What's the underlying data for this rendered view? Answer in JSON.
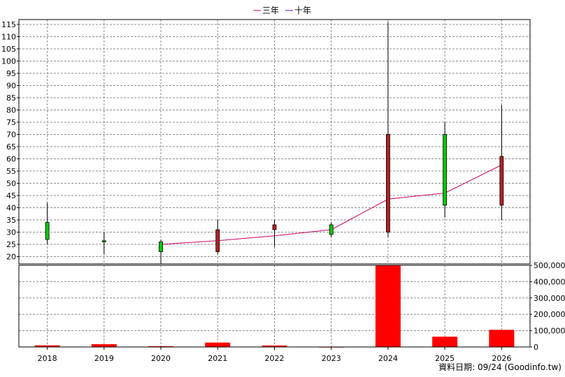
{
  "legend": {
    "items": [
      {
        "label": "三年",
        "color": "#cc0066"
      },
      {
        "label": "十年",
        "color": "#6600cc"
      }
    ]
  },
  "footer": {
    "text": "資料日期: 09/24  (Goodinfo.tw)"
  },
  "colors": {
    "up": "#00cc00",
    "down": "#b22222",
    "volume": "#ff0000",
    "three_year_line": "#cc0066",
    "grid": "#8c8c8c"
  },
  "chart_data": [
    {
      "type": "candlestick",
      "categories": [
        "2018",
        "2019",
        "2020",
        "2021",
        "2022",
        "2023",
        "2024",
        "2025",
        "2026"
      ],
      "ylim": [
        17,
        117
      ],
      "yticks": [
        20,
        25,
        30,
        35,
        40,
        45,
        50,
        55,
        60,
        65,
        70,
        75,
        80,
        85,
        90,
        95,
        100,
        105,
        110,
        115
      ],
      "grid": true,
      "candles": [
        {
          "x": "2018",
          "open": 27,
          "close": 34,
          "high": 42,
          "low": 25
        },
        {
          "x": "2019",
          "open": 26,
          "close": 26.5,
          "high": 30,
          "low": 21
        },
        {
          "x": "2020",
          "open": 22,
          "close": 26,
          "high": 27,
          "low": 17
        },
        {
          "x": "2021",
          "open": 31,
          "close": 22,
          "high": 35,
          "low": 21
        },
        {
          "x": "2022",
          "open": 33,
          "close": 31,
          "high": 35,
          "low": 24
        },
        {
          "x": "2023",
          "open": 29,
          "close": 33,
          "high": 34,
          "low": 28
        },
        {
          "x": "2024",
          "open": 70,
          "close": 30,
          "high": 116,
          "low": 28
        },
        {
          "x": "2025",
          "open": 41,
          "close": 70,
          "high": 75,
          "low": 36
        },
        {
          "x": "2026",
          "open": 61,
          "close": 41,
          "high": 82,
          "low": 35
        }
      ],
      "series": [
        {
          "name": "三年",
          "x": [
            "2020",
            "2021",
            "2022",
            "2023",
            "2024",
            "2025",
            "2026"
          ],
          "values": [
            25,
            26.5,
            28.5,
            31,
            43.5,
            46,
            57.5
          ]
        }
      ]
    },
    {
      "type": "bar",
      "categories": [
        "2018",
        "2019",
        "2020",
        "2021",
        "2022",
        "2023",
        "2024",
        "2025",
        "2026"
      ],
      "values": [
        10000,
        17000,
        5000,
        27000,
        9000,
        1000,
        505000,
        63000,
        105000
      ],
      "ylim": [
        0,
        500000
      ],
      "yticks": [
        "0",
        "100,000",
        "200,000",
        "300,000",
        "400,000",
        "500,000"
      ],
      "grid": true
    }
  ]
}
